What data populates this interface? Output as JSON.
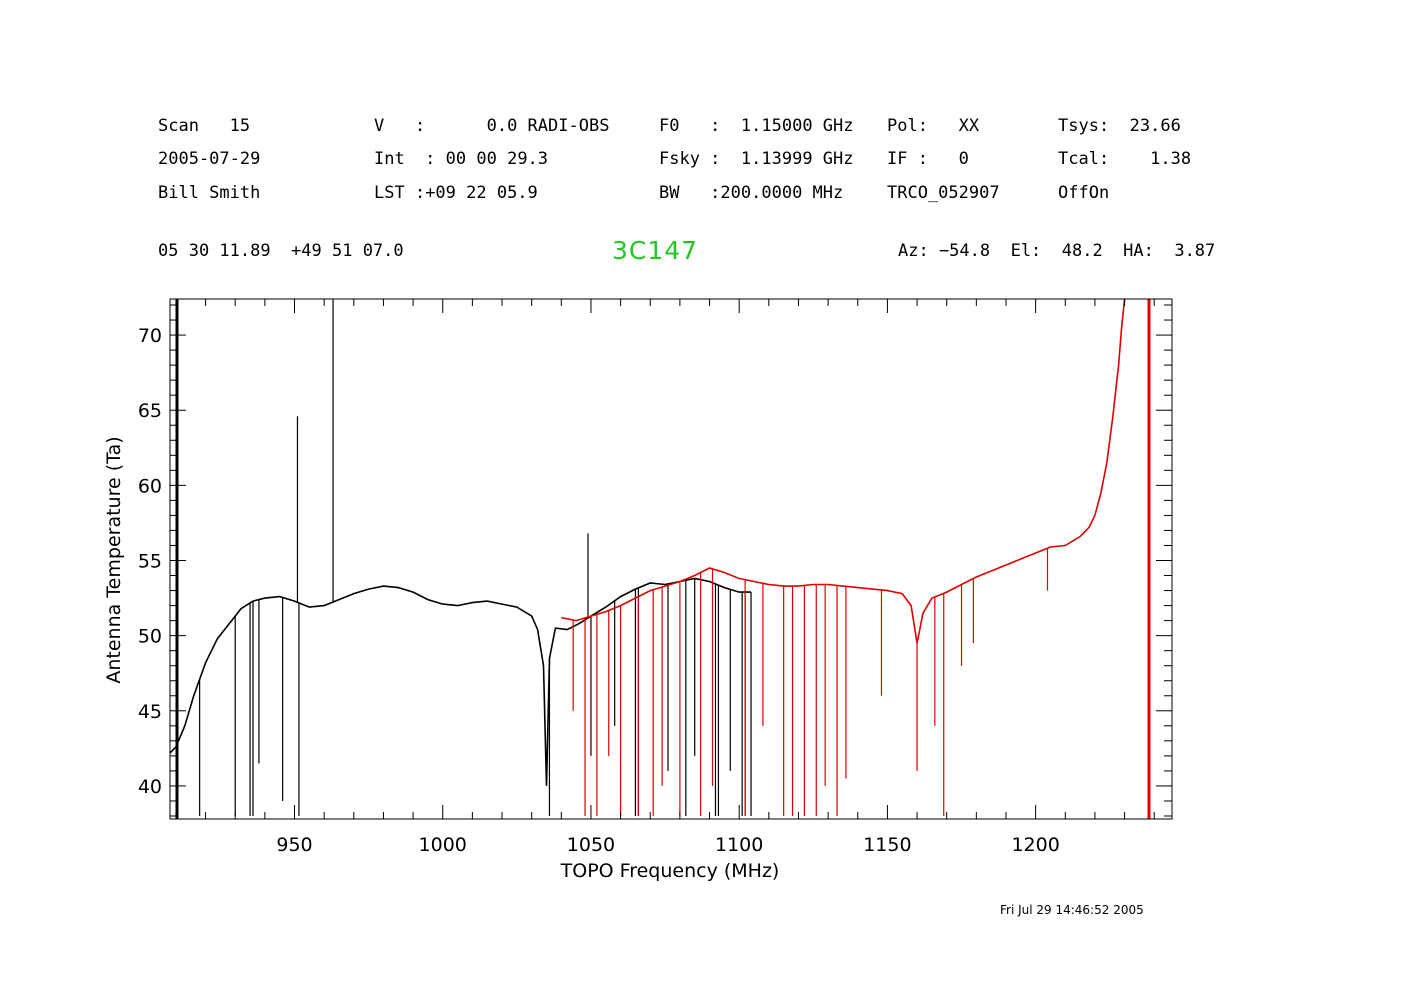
{
  "header": {
    "scan_label": "Scan",
    "scan_value": "15",
    "date": "2005-07-29",
    "observer": "Bill Smith",
    "v_label": "V   :",
    "v_value": "0.0 RADI-OBS",
    "int_label": "Int  :",
    "int_value": "00 00 29.3",
    "lst_label": "LST :",
    "lst_value": "+09 22 05.9",
    "f0_label": "F0   :",
    "f0_value": "1.15000 GHz",
    "fsky_label": "Fsky :",
    "fsky_value": "1.13999 GHz",
    "bw_label": "BW   :",
    "bw_value": "200.0000 MHz",
    "pol_label": "Pol:",
    "pol_value": "XX",
    "if_label": "IF :",
    "if_value": "0",
    "proj": "TRCO_052907",
    "tsys_label": "Tsys:",
    "tsys_value": "23.66",
    "tcal_label": "Tcal:",
    "tcal_value": "1.38",
    "mode": "OffOn",
    "radec": "05 30 11.89  +49 51 07.0",
    "source": "3C147",
    "azelha": "Az: −54.8  El:  48.2  HA:  3.87"
  },
  "timestamp": "Fri Jul 29 14:46:52 2005",
  "chart_data": {
    "type": "line",
    "xlabel": "TOPO Frequency (MHz)",
    "ylabel": "Antenna Temperature (Ta)",
    "xlim": [
      908,
      1246
    ],
    "ylim": [
      37.8,
      72.4
    ],
    "x_ticks": [
      950,
      1000,
      1050,
      1100,
      1150,
      1200
    ],
    "y_ticks": [
      40,
      45,
      50,
      55,
      60,
      65,
      70
    ],
    "grid": false,
    "colors": {
      "series_black": "#000000",
      "series_red": "#e00000",
      "source_label": "#22c822"
    },
    "series": [
      {
        "color": "#000000",
        "x": [
          908,
          910,
          913,
          916,
          920,
          924,
          928,
          932,
          936,
          940,
          945,
          950,
          955,
          960,
          965,
          970,
          975,
          980,
          985,
          990,
          995,
          1000,
          1005,
          1010,
          1015,
          1020,
          1025,
          1030,
          1032,
          1034,
          1035,
          1036,
          1038,
          1042,
          1046,
          1050,
          1055,
          1060,
          1065,
          1070,
          1075,
          1080,
          1085,
          1090,
          1095,
          1100,
          1104
        ],
        "y": [
          42.2,
          42.6,
          44.0,
          46.0,
          48.2,
          49.8,
          50.8,
          51.8,
          52.3,
          52.5,
          52.6,
          52.3,
          51.9,
          52.0,
          52.4,
          52.8,
          53.1,
          53.3,
          53.2,
          52.9,
          52.4,
          52.1,
          52.0,
          52.2,
          52.3,
          52.1,
          51.9,
          51.3,
          50.4,
          48.0,
          40.0,
          48.5,
          50.5,
          50.4,
          50.8,
          51.3,
          51.9,
          52.6,
          53.1,
          53.5,
          53.4,
          53.6,
          53.8,
          53.6,
          53.2,
          52.9,
          52.9
        ],
        "spikes": [
          {
            "x": 918,
            "y": 38.0
          },
          {
            "x": 930,
            "y": 38.0
          },
          {
            "x": 935,
            "y": 38.0
          },
          {
            "x": 936,
            "y": 38.0
          },
          {
            "x": 938,
            "y": 41.5
          },
          {
            "x": 946,
            "y": 39.0
          },
          {
            "x": 951,
            "y": 64.6
          },
          {
            "x": 951.5,
            "y": 38.0
          },
          {
            "x": 963,
            "y": 72.4
          },
          {
            "x": 1036,
            "y": 38.0
          },
          {
            "x": 1049,
            "y": 56.8
          },
          {
            "x": 1050,
            "y": 42.0
          },
          {
            "x": 1058,
            "y": 44.0
          },
          {
            "x": 1065,
            "y": 38.0
          },
          {
            "x": 1066,
            "y": 38.0
          },
          {
            "x": 1076,
            "y": 41.0
          },
          {
            "x": 1082,
            "y": 38.0
          },
          {
            "x": 1085,
            "y": 42.0
          },
          {
            "x": 1092,
            "y": 38.0
          },
          {
            "x": 1093,
            "y": 38.0
          },
          {
            "x": 1097,
            "y": 41.0
          },
          {
            "x": 1101,
            "y": 38.0
          },
          {
            "x": 1102,
            "y": 38.0
          },
          {
            "x": 1104,
            "y": 38.0
          }
        ]
      },
      {
        "color": "#e00000",
        "x": [
          1040,
          1045,
          1050,
          1055,
          1060,
          1065,
          1070,
          1075,
          1080,
          1085,
          1090,
          1095,
          1100,
          1105,
          1110,
          1115,
          1120,
          1125,
          1130,
          1135,
          1140,
          1145,
          1150,
          1155,
          1158,
          1160,
          1162,
          1165,
          1170,
          1175,
          1180,
          1185,
          1190,
          1195,
          1200,
          1205,
          1210,
          1215,
          1218,
          1220,
          1222,
          1224,
          1226,
          1228,
          1229,
          1230
        ],
        "y": [
          51.2,
          51.0,
          51.3,
          51.6,
          52.0,
          52.5,
          53.0,
          53.3,
          53.6,
          54.0,
          54.5,
          54.2,
          53.8,
          53.6,
          53.4,
          53.3,
          53.3,
          53.4,
          53.4,
          53.3,
          53.2,
          53.1,
          53.0,
          52.8,
          52.0,
          49.5,
          51.5,
          52.5,
          52.9,
          53.4,
          53.9,
          54.3,
          54.7,
          55.1,
          55.5,
          55.9,
          56.0,
          56.6,
          57.2,
          58.0,
          59.5,
          61.5,
          64.5,
          68.0,
          70.5,
          72.4
        ],
        "spikes": [
          {
            "x": 1044,
            "y": 45.0
          },
          {
            "x": 1048,
            "y": 38.0
          },
          {
            "x": 1052,
            "y": 38.0
          },
          {
            "x": 1056,
            "y": 42.0
          },
          {
            "x": 1060,
            "y": 38.0
          },
          {
            "x": 1066,
            "y": 38.0
          },
          {
            "x": 1071,
            "y": 38.0
          },
          {
            "x": 1074,
            "y": 40.0
          },
          {
            "x": 1080,
            "y": 38.0
          },
          {
            "x": 1087,
            "y": 38.0
          },
          {
            "x": 1091,
            "y": 40.0
          },
          {
            "x": 1102,
            "y": 38.0
          },
          {
            "x": 1108,
            "y": 44.0
          },
          {
            "x": 1115,
            "y": 38.0
          },
          {
            "x": 1118,
            "y": 38.0
          },
          {
            "x": 1122,
            "y": 38.0
          },
          {
            "x": 1126,
            "y": 38.0
          },
          {
            "x": 1129,
            "y": 40.0
          },
          {
            "x": 1133,
            "y": 38.0
          },
          {
            "x": 1136,
            "y": 40.5
          },
          {
            "x": 1148,
            "y": 46.0
          },
          {
            "x": 1160,
            "y": 41.0
          },
          {
            "x": 1166,
            "y": 44.0
          },
          {
            "x": 1169,
            "y": 38.0
          },
          {
            "x": 1175,
            "y": 48.0
          },
          {
            "x": 1179,
            "y": 49.5
          },
          {
            "x": 1204,
            "y": 53.0
          }
        ]
      }
    ]
  }
}
